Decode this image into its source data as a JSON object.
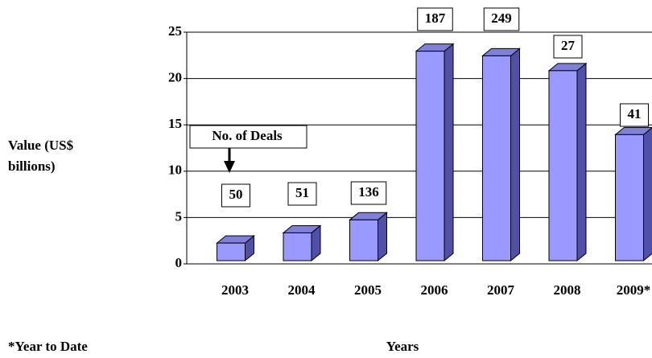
{
  "chart_data": {
    "type": "bar3d",
    "y_label": "Value (US$ billions)",
    "x_label": "Years",
    "footnote": "*Year to Date",
    "annotation": "No. of Deals",
    "categories": [
      "2003",
      "2004",
      "2005",
      "2006",
      "2007",
      "2008",
      "2009*"
    ],
    "values": [
      1.9,
      3.0,
      4.4,
      22.6,
      22.1,
      20.5,
      13.6
    ],
    "deals": [
      "50",
      "51",
      "136",
      "187",
      "249",
      "27",
      "41"
    ],
    "color": "#9999ff",
    "ylim": [
      0,
      25
    ],
    "yticks": [
      0,
      5,
      10,
      15,
      20,
      25
    ],
    "grid": true
  }
}
